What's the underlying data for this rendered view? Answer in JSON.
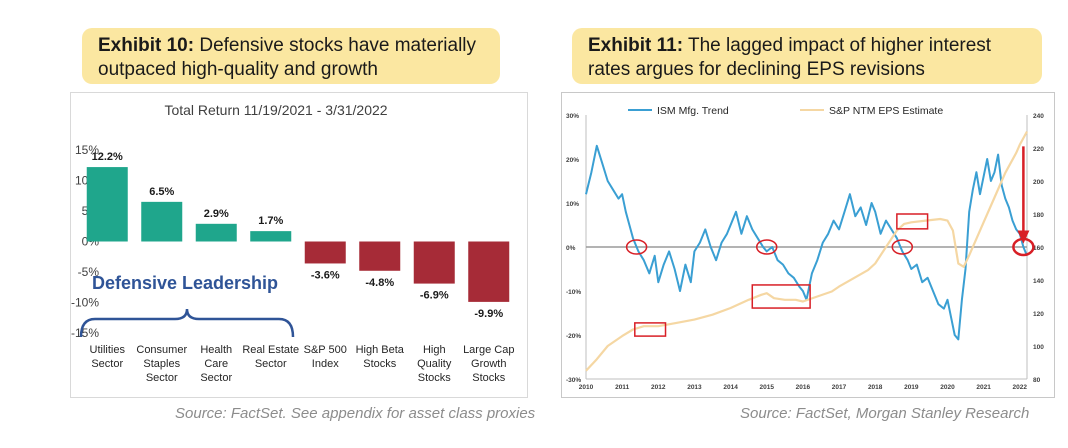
{
  "exhibits": [
    {
      "number": "Exhibit 10:",
      "title": "Defensive stocks have materially outpaced high-quality and growth",
      "source": "Source: FactSet. See appendix for asset class proxies"
    },
    {
      "number": "Exhibit 11:",
      "title": "The lagged impact of higher interest rates argues for declining EPS revisions",
      "source": "Source: FactSet, Morgan Stanley Research"
    }
  ],
  "colors": {
    "title_bg": "#fbe7a1",
    "positive_bar": "#1fa68c",
    "negative_bar": "#a62b37",
    "ism_line": "#3a9fd3",
    "eps_line": "#f5d7a3",
    "highlight": "#d81f26",
    "brace": "#2f5497"
  },
  "chart_data": [
    {
      "type": "bar",
      "title": "Total Return 11/19/2021 - 3/31/2022",
      "categories": [
        [
          "Utilities",
          "Sector"
        ],
        [
          "Consumer",
          "Staples",
          "Sector"
        ],
        [
          "Health",
          "Care",
          "Sector"
        ],
        [
          "Real Estate",
          "Sector"
        ],
        [
          "S&P 500",
          "Index"
        ],
        [
          "High Beta",
          "Stocks"
        ],
        [
          "High",
          "Quality",
          "Stocks"
        ],
        [
          "Large Cap",
          "Growth",
          "Stocks"
        ]
      ],
      "values": [
        12.2,
        6.5,
        2.9,
        1.7,
        -3.6,
        -4.8,
        -6.9,
        -9.9
      ],
      "value_labels": [
        "12.2%",
        "6.5%",
        "2.9%",
        "1.7%",
        "-3.6%",
        "-4.8%",
        "-6.9%",
        "-9.9%"
      ],
      "ylim": [
        -15,
        15
      ],
      "yticks": [
        15,
        10,
        5,
        0,
        -5,
        -10,
        -15
      ],
      "ytick_labels": [
        "15%",
        "10%",
        "5%",
        "0%",
        "-5%",
        "-10%",
        "-15%"
      ],
      "annotation": "Defensive Leadership",
      "grid": false
    },
    {
      "type": "line",
      "x_range": [
        2010,
        2022.2
      ],
      "xticks": [
        "2010",
        "2011",
        "2012",
        "2013",
        "2014",
        "2015",
        "2016",
        "2017",
        "2018",
        "2019",
        "2020",
        "2021",
        "2022"
      ],
      "y_left": {
        "ylim": [
          -30,
          30
        ],
        "ticks": [
          "30%",
          "20%",
          "10%",
          "0%",
          "-10%",
          "-20%",
          "-30%"
        ]
      },
      "y_right": {
        "ylim": [
          80,
          240
        ],
        "ticks": [
          "240",
          "220",
          "200",
          "180",
          "160",
          "140",
          "120",
          "100",
          "80"
        ]
      },
      "legend": "top",
      "series": [
        {
          "name": "ISM Mfg. Trend",
          "axis": "left",
          "x": [
            2010.0,
            2010.15,
            2010.3,
            2010.45,
            2010.6,
            2010.75,
            2010.9,
            2011.0,
            2011.1,
            2011.2,
            2011.3,
            2011.45,
            2011.6,
            2011.75,
            2011.9,
            2012.0,
            2012.15,
            2012.3,
            2012.45,
            2012.6,
            2012.75,
            2012.9,
            2013.0,
            2013.15,
            2013.3,
            2013.45,
            2013.6,
            2013.75,
            2013.9,
            2014.0,
            2014.15,
            2014.3,
            2014.45,
            2014.6,
            2014.75,
            2014.9,
            2015.0,
            2015.15,
            2015.3,
            2015.45,
            2015.6,
            2015.75,
            2015.9,
            2016.0,
            2016.1,
            2016.25,
            2016.4,
            2016.55,
            2016.7,
            2016.85,
            2017.0,
            2017.15,
            2017.3,
            2017.45,
            2017.6,
            2017.75,
            2017.9,
            2018.0,
            2018.15,
            2018.3,
            2018.45,
            2018.6,
            2018.75,
            2018.9,
            2019.0,
            2019.15,
            2019.3,
            2019.45,
            2019.6,
            2019.75,
            2019.9,
            2020.0,
            2020.1,
            2020.2,
            2020.3,
            2020.4,
            2020.5,
            2020.6,
            2020.7,
            2020.8,
            2020.9,
            2021.0,
            2021.1,
            2021.2,
            2021.3,
            2021.4,
            2021.5,
            2021.6,
            2021.7,
            2021.8,
            2021.9,
            2022.0,
            2022.1,
            2022.2
          ],
          "y": [
            12,
            17,
            23,
            19,
            15,
            13,
            11,
            12,
            8,
            5,
            2,
            -1,
            -3,
            -6,
            -2,
            -8,
            -4,
            -1,
            -5,
            -10,
            -4,
            -8,
            -1,
            1,
            4,
            0,
            -3,
            1,
            3,
            5,
            8,
            3,
            7,
            4,
            2,
            0,
            -1,
            0,
            -3,
            -4,
            -6,
            -7,
            -9,
            -10,
            -12,
            -6,
            -3,
            1,
            3,
            6,
            4,
            8,
            12,
            7,
            9,
            5,
            10,
            8,
            3,
            6,
            4,
            2,
            -1,
            -3,
            -5,
            -4,
            -8,
            -7,
            -10,
            -13,
            -14,
            -12,
            -16,
            -20,
            -21,
            -12,
            -5,
            8,
            13,
            17,
            12,
            16,
            20,
            15,
            17,
            21,
            14,
            11,
            9,
            6,
            4,
            3,
            0,
            -2
          ]
        },
        {
          "name": "S&P NTM EPS Estimate",
          "axis": "right",
          "x": [
            2010.0,
            2010.3,
            2010.6,
            2011.0,
            2011.3,
            2011.6,
            2012.0,
            2012.5,
            2013.0,
            2013.5,
            2014.0,
            2014.5,
            2014.85,
            2015.0,
            2015.2,
            2015.5,
            2015.8,
            2016.0,
            2016.4,
            2016.8,
            2017.0,
            2017.4,
            2017.8,
            2018.0,
            2018.3,
            2018.6,
            2018.8,
            2019.0,
            2019.4,
            2019.8,
            2020.0,
            2020.15,
            2020.3,
            2020.45,
            2020.6,
            2020.8,
            2021.0,
            2021.3,
            2021.6,
            2021.9,
            2022.0,
            2022.2
          ],
          "y": [
            85,
            92,
            100,
            106,
            110,
            112,
            112,
            114,
            116,
            119,
            123,
            128,
            131,
            132,
            129,
            128,
            128,
            127,
            130,
            133,
            136,
            141,
            146,
            150,
            160,
            170,
            174,
            175,
            176,
            177,
            176,
            170,
            150,
            148,
            155,
            165,
            175,
            190,
            205,
            217,
            222,
            230
          ]
        }
      ]
    }
  ]
}
